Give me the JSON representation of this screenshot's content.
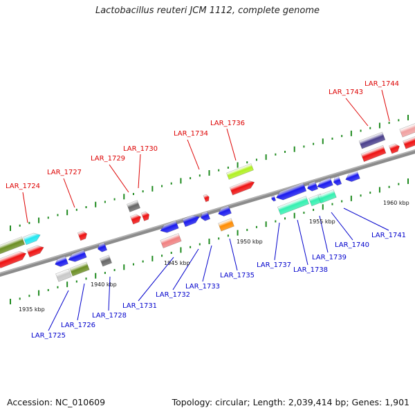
{
  "title": "Lactobacillus reuteri JCM 1112, complete genome",
  "footer": {
    "accession": "Accession: NC_010609",
    "summary": "Topology: circular; Length: 2,039,414 bp; Genes: 1,901"
  },
  "colors": {
    "backbone": "#8c8c8c",
    "top_label": "#dd0000",
    "bottom_label": "#0000cc",
    "tick": "#1e8a1e"
  },
  "scale_labels": [
    "1935 kbp",
    "1940 kbp",
    "1945 kbp",
    "1950 kbp",
    "1955 kbp",
    "1960 kbp"
  ],
  "top_labels": [
    "LAR_1724",
    "LAR_1727",
    "LAR_1729",
    "LAR_1730",
    "LAR_1734",
    "LAR_1736",
    "LAR_1743",
    "LAR_1744"
  ],
  "bottom_labels": [
    "LAR_1725",
    "LAR_1726",
    "LAR_1728",
    "LAR_1731",
    "LAR_1732",
    "LAR_1733",
    "LAR_1735",
    "LAR_1737",
    "LAR_1738",
    "LAR_1739",
    "LAR_1740",
    "LAR_1741"
  ]
}
